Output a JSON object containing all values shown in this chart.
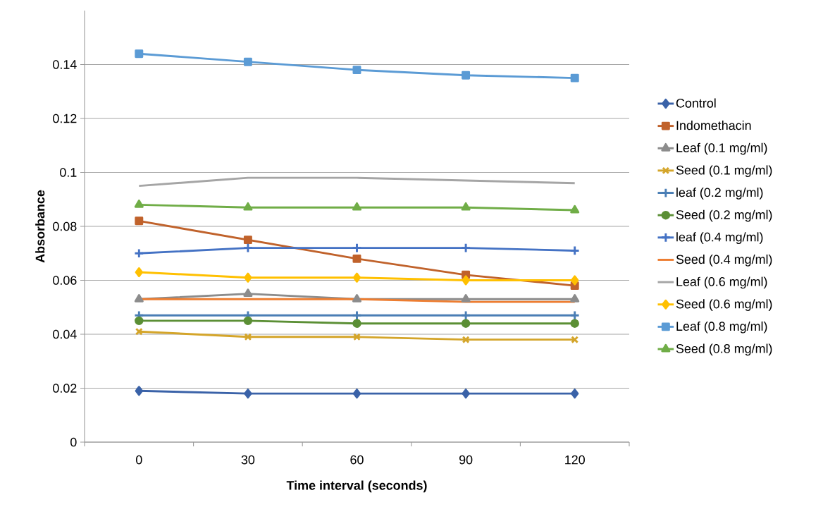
{
  "chart_data": {
    "type": "line",
    "xlabel": "Time interval (seconds)",
    "ylabel": "Absorbance",
    "categories": [
      "0",
      "30",
      "60",
      "90",
      "120"
    ],
    "ylim": [
      0,
      0.16
    ],
    "yticks": [
      0,
      0.02,
      0.04,
      0.06,
      0.08,
      0.1,
      0.12,
      0.14
    ],
    "grid": "y",
    "legend": "right",
    "line_style": "solid",
    "series": [
      {
        "name": "Control",
        "color": "#3a62a8",
        "marker": "diamond",
        "values": [
          0.019,
          0.018,
          0.018,
          0.018,
          0.018
        ]
      },
      {
        "name": "Indomethacin",
        "color": "#c0622b",
        "marker": "square",
        "values": [
          0.082,
          0.075,
          0.068,
          0.062,
          0.058
        ]
      },
      {
        "name": "Leaf (0.1 mg/ml)",
        "color": "#8c8c8c",
        "marker": "triangle",
        "values": [
          0.053,
          0.055,
          0.053,
          0.053,
          0.053
        ]
      },
      {
        "name": "Seed (0.1 mg/ml)",
        "color": "#d4a52a",
        "marker": "x",
        "values": [
          0.041,
          0.039,
          0.039,
          0.038,
          0.038
        ]
      },
      {
        "name": "leaf (0.2 mg/ml)",
        "color": "#4a7eb5",
        "marker": "cross",
        "values": [
          0.047,
          0.047,
          0.047,
          0.047,
          0.047
        ]
      },
      {
        "name": "Seed (0.2 mg/ml)",
        "color": "#5b8f35",
        "marker": "circle",
        "values": [
          0.045,
          0.045,
          0.044,
          0.044,
          0.044
        ]
      },
      {
        "name": "leaf (0.4 mg/ml)",
        "color": "#4472c4",
        "marker": "cross",
        "values": [
          0.07,
          0.072,
          0.072,
          0.072,
          0.071
        ]
      },
      {
        "name": "Seed (0.4 mg/ml)",
        "color": "#ed7d31",
        "marker": "none",
        "values": [
          0.053,
          0.053,
          0.053,
          0.052,
          0.052
        ]
      },
      {
        "name": "Leaf (0.6 mg/ml)",
        "color": "#a5a5a5",
        "marker": "none",
        "values": [
          0.095,
          0.098,
          0.098,
          0.097,
          0.096
        ]
      },
      {
        "name": "Seed (0.6 mg/ml)",
        "color": "#ffc000",
        "marker": "diamond",
        "values": [
          0.063,
          0.061,
          0.061,
          0.06,
          0.06
        ]
      },
      {
        "name": "Leaf (0.8 mg/ml)",
        "color": "#5b9bd5",
        "marker": "square",
        "values": [
          0.144,
          0.141,
          0.138,
          0.136,
          0.135
        ]
      },
      {
        "name": "Seed (0.8 mg/ml)",
        "color": "#70ad47",
        "marker": "triangle",
        "values": [
          0.088,
          0.087,
          0.087,
          0.087,
          0.086
        ]
      }
    ]
  }
}
